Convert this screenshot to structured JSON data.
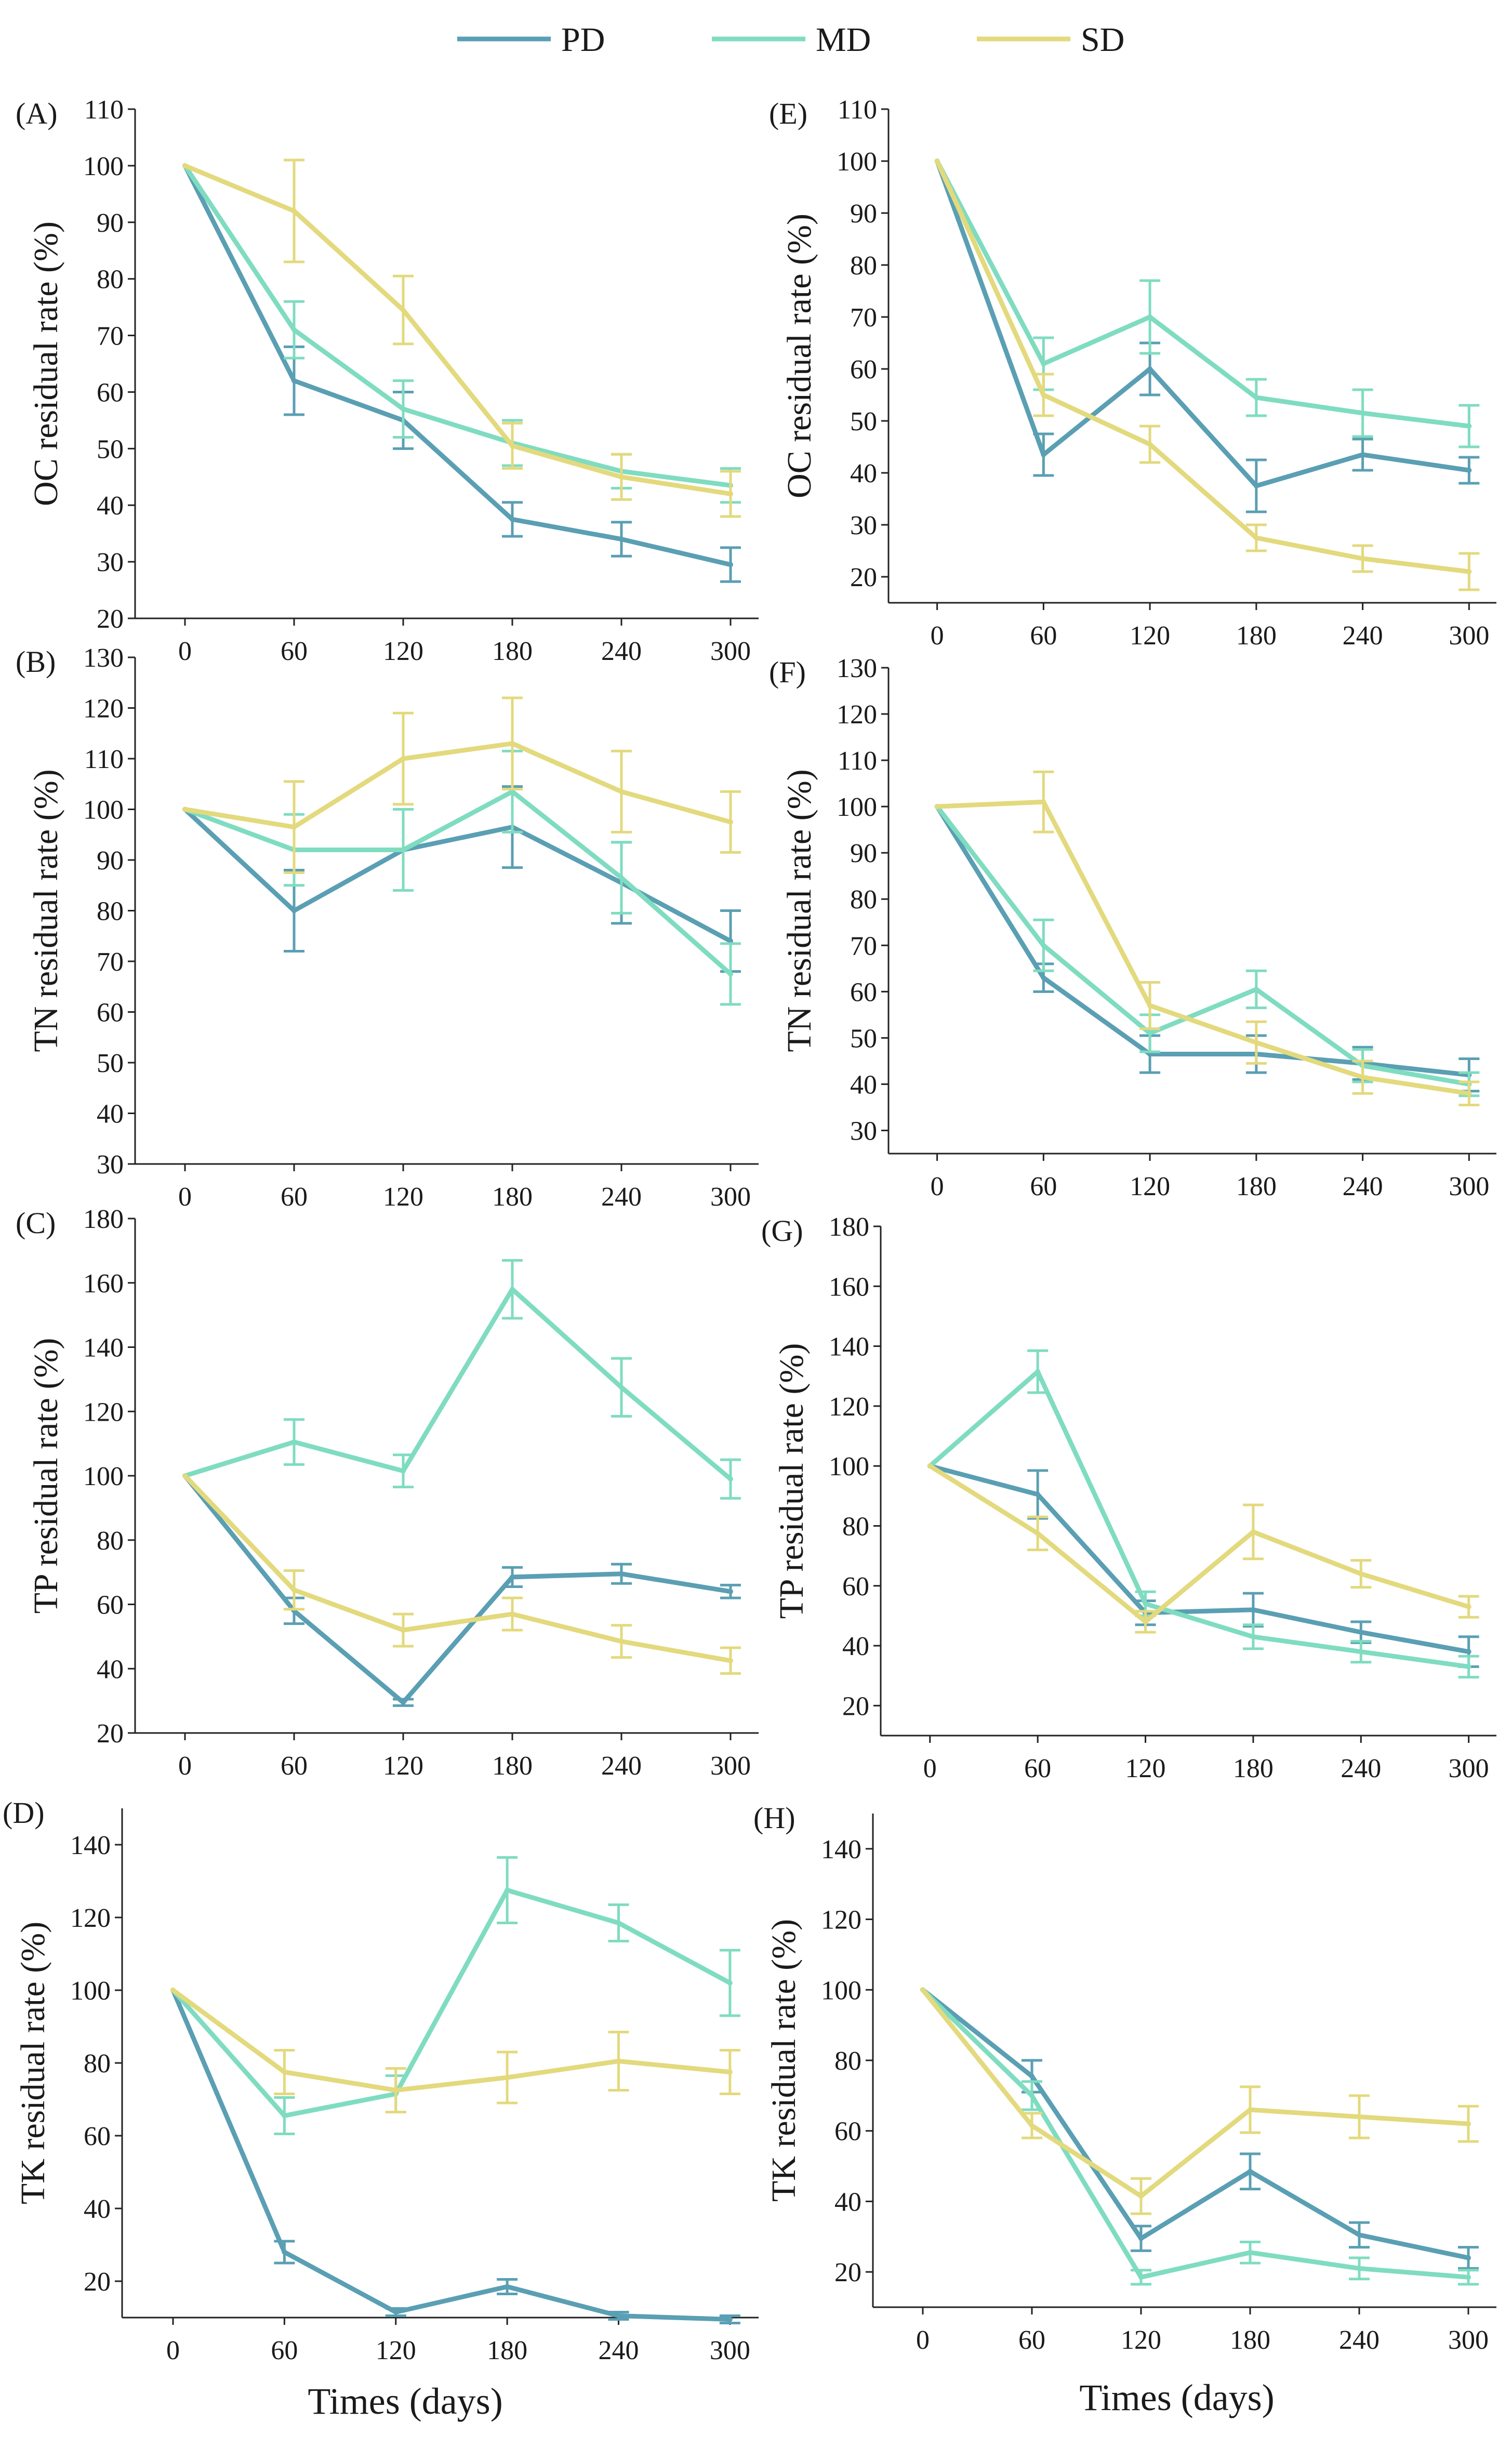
{
  "legend": {
    "items": [
      {
        "name": "PD",
        "color": "#5a9fb3"
      },
      {
        "name": "MD",
        "color": "#7fdcc0"
      },
      {
        "name": "SD",
        "color": "#e3d97d"
      }
    ]
  },
  "x_title": "Times (days)",
  "chart_data": [
    {
      "panel": "(A)",
      "type": "line",
      "ylabel": "OC residual rate (%)",
      "x": [
        0,
        60,
        120,
        180,
        240,
        300
      ],
      "ylim": [
        20,
        110
      ],
      "yticks": [
        20,
        30,
        40,
        50,
        60,
        70,
        80,
        90,
        100,
        110
      ],
      "series": [
        {
          "name": "PD",
          "values": [
            100,
            62,
            55,
            37.5,
            34,
            29.5
          ],
          "errors": [
            0,
            6,
            5,
            3,
            3,
            3
          ]
        },
        {
          "name": "MD",
          "values": [
            100,
            71,
            57,
            51,
            46,
            43.5
          ],
          "errors": [
            0,
            5,
            5,
            4,
            3,
            3
          ]
        },
        {
          "name": "SD",
          "values": [
            100,
            92,
            74.5,
            50.5,
            45,
            42
          ],
          "errors": [
            0,
            9,
            6,
            4,
            4,
            4
          ]
        }
      ]
    },
    {
      "panel": "(B)",
      "type": "line",
      "ylabel": "TN residual rate (%)",
      "x": [
        0,
        60,
        120,
        180,
        240,
        300
      ],
      "ylim": [
        30,
        130
      ],
      "yticks": [
        30,
        40,
        50,
        60,
        70,
        80,
        90,
        100,
        110,
        120,
        130
      ],
      "series": [
        {
          "name": "PD",
          "values": [
            100,
            80,
            92,
            96.5,
            85.5,
            74
          ],
          "errors": [
            0,
            8,
            8,
            8,
            8,
            6
          ]
        },
        {
          "name": "MD",
          "values": [
            100,
            92,
            92,
            103.5,
            86.5,
            67.5
          ],
          "errors": [
            0,
            7,
            8,
            8,
            7,
            6
          ]
        },
        {
          "name": "SD",
          "values": [
            100,
            96.5,
            110,
            113,
            103.5,
            97.5
          ],
          "errors": [
            0,
            9,
            9,
            9,
            8,
            6
          ]
        }
      ]
    },
    {
      "panel": "(C)",
      "type": "line",
      "ylabel": "TP residual rate (%)",
      "x": [
        0,
        60,
        120,
        180,
        240,
        300
      ],
      "ylim": [
        20,
        180
      ],
      "yticks": [
        20,
        40,
        60,
        80,
        100,
        120,
        140,
        160,
        180
      ],
      "series": [
        {
          "name": "PD",
          "values": [
            100,
            58,
            29.5,
            68.5,
            69.5,
            64
          ],
          "errors": [
            0,
            4,
            1,
            3,
            3,
            2
          ]
        },
        {
          "name": "MD",
          "values": [
            100,
            110.5,
            101.5,
            158,
            127.5,
            99
          ],
          "errors": [
            0,
            7,
            5,
            9,
            9,
            6
          ]
        },
        {
          "name": "SD",
          "values": [
            100,
            64.5,
            52,
            57,
            48.5,
            42.5
          ],
          "errors": [
            0,
            6,
            5,
            5,
            5,
            4
          ]
        }
      ]
    },
    {
      "panel": "(D)",
      "type": "line",
      "ylabel": "TK residual rate (%)",
      "x": [
        0,
        60,
        120,
        180,
        240,
        300
      ],
      "ylim": [
        10,
        150
      ],
      "yticks": [
        20,
        40,
        60,
        80,
        100,
        120,
        140
      ],
      "series": [
        {
          "name": "PD",
          "values": [
            100,
            28,
            11.5,
            18.5,
            10.5,
            9.5
          ],
          "errors": [
            0,
            3,
            1,
            2,
            1,
            1
          ]
        },
        {
          "name": "MD",
          "values": [
            100,
            65.5,
            71.5,
            127.5,
            118.5,
            102
          ],
          "errors": [
            0,
            5,
            5,
            9,
            5,
            9
          ]
        },
        {
          "name": "SD",
          "values": [
            100,
            77.5,
            72.5,
            76,
            80.5,
            77.5
          ],
          "errors": [
            0,
            6,
            6,
            7,
            8,
            6
          ]
        }
      ]
    },
    {
      "panel": "(E)",
      "type": "line",
      "ylabel": "OC residual rate (%)",
      "x": [
        0,
        60,
        120,
        180,
        240,
        300
      ],
      "ylim": [
        15,
        110
      ],
      "yticks": [
        20,
        30,
        40,
        50,
        60,
        70,
        80,
        90,
        100,
        110
      ],
      "series": [
        {
          "name": "PD",
          "values": [
            100,
            43.5,
            60,
            37.5,
            43.5,
            40.5
          ],
          "errors": [
            0,
            4,
            5,
            5,
            3,
            2.5
          ]
        },
        {
          "name": "MD",
          "values": [
            100,
            61,
            70,
            54.5,
            51.5,
            49
          ],
          "errors": [
            0,
            5,
            7,
            3.5,
            4.5,
            4
          ]
        },
        {
          "name": "SD",
          "values": [
            100,
            55,
            45.5,
            27.5,
            23.5,
            21
          ],
          "errors": [
            0,
            4,
            3.5,
            2.5,
            2.5,
            3.5
          ]
        }
      ]
    },
    {
      "panel": "(F)",
      "type": "line",
      "ylabel": "TN residual rate (%)",
      "x": [
        0,
        60,
        120,
        180,
        240,
        300
      ],
      "ylim": [
        25,
        130
      ],
      "yticks": [
        30,
        40,
        50,
        60,
        70,
        80,
        90,
        100,
        110,
        120,
        130
      ],
      "series": [
        {
          "name": "PD",
          "values": [
            100,
            63,
            46.5,
            46.5,
            44.5,
            42
          ],
          "errors": [
            0,
            3,
            4,
            4,
            3.5,
            3.5
          ]
        },
        {
          "name": "MD",
          "values": [
            100,
            70,
            51,
            60.5,
            44,
            40
          ],
          "errors": [
            0,
            5.5,
            4,
            4,
            3.5,
            2.5
          ]
        },
        {
          "name": "SD",
          "values": [
            100,
            101,
            57,
            49,
            41.5,
            38
          ],
          "errors": [
            0,
            6.5,
            5,
            4.5,
            3.5,
            2.5
          ]
        }
      ]
    },
    {
      "panel": "(G)",
      "type": "line",
      "ylabel": "TP residual rate (%)",
      "x": [
        0,
        60,
        120,
        180,
        240,
        300
      ],
      "ylim": [
        10,
        180
      ],
      "yticks": [
        20,
        40,
        60,
        80,
        100,
        120,
        140,
        160,
        180
      ],
      "series": [
        {
          "name": "PD",
          "values": [
            100,
            90.5,
            51,
            52,
            44.5,
            38
          ],
          "errors": [
            0,
            8,
            4,
            5.5,
            3.5,
            5
          ]
        },
        {
          "name": "MD",
          "values": [
            100,
            131.5,
            54,
            43,
            38,
            33
          ],
          "errors": [
            0,
            7,
            4,
            4,
            3.5,
            3.5
          ]
        },
        {
          "name": "SD",
          "values": [
            100,
            77.5,
            48,
            78,
            64,
            53
          ],
          "errors": [
            0,
            5.5,
            3.5,
            9,
            4.5,
            3.5
          ]
        }
      ]
    },
    {
      "panel": "(H)",
      "type": "line",
      "ylabel": "TK residual rate (%)",
      "x": [
        0,
        60,
        120,
        180,
        240,
        300
      ],
      "ylim": [
        10,
        150
      ],
      "yticks": [
        20,
        40,
        60,
        80,
        100,
        120,
        140
      ],
      "series": [
        {
          "name": "PD",
          "values": [
            100,
            75.5,
            29.5,
            48.5,
            30.5,
            24
          ],
          "errors": [
            0,
            4.5,
            3.5,
            5,
            3.5,
            3
          ]
        },
        {
          "name": "MD",
          "values": [
            100,
            70,
            18.5,
            25.5,
            21,
            18.5
          ],
          "errors": [
            0,
            4,
            2,
            3,
            3,
            2
          ]
        },
        {
          "name": "SD",
          "values": [
            100,
            61.5,
            41.5,
            66,
            64,
            62
          ],
          "errors": [
            0,
            3.5,
            5,
            6.5,
            6,
            5
          ]
        }
      ]
    }
  ]
}
